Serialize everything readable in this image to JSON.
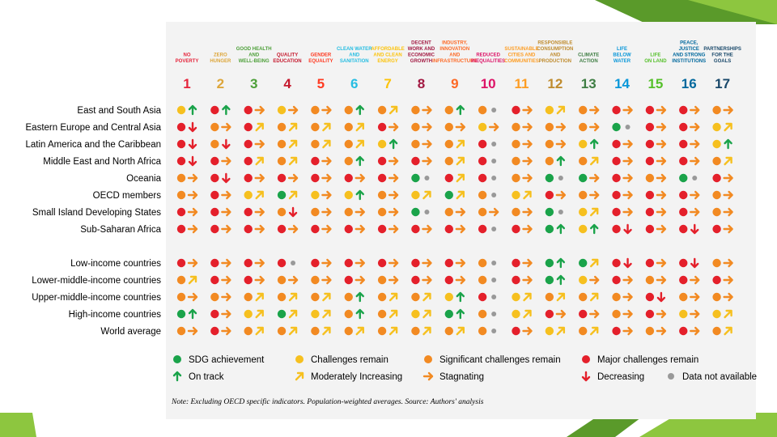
{
  "slide": {
    "accent_color": "#8dc63f",
    "dark_accent": "#5a9a2a"
  },
  "chart_data": {
    "type": "table",
    "goals": [
      {
        "num": "1",
        "title": [
          "NO",
          "POVERTY"
        ],
        "color": "#e5243b"
      },
      {
        "num": "2",
        "title": [
          "ZERO",
          "HUNGER"
        ],
        "color": "#dda63a"
      },
      {
        "num": "3",
        "title": [
          "GOOD HEALTH",
          "AND",
          "WELL-BEING"
        ],
        "color": "#4c9f38"
      },
      {
        "num": "4",
        "title": [
          "QUALITY",
          "EDUCATION"
        ],
        "color": "#c5192d"
      },
      {
        "num": "5",
        "title": [
          "GENDER",
          "EQUALITY"
        ],
        "color": "#ff3a21"
      },
      {
        "num": "6",
        "title": [
          "CLEAN WATER",
          "AND",
          "SANITATION"
        ],
        "color": "#26bde2"
      },
      {
        "num": "7",
        "title": [
          "AFFORDABLE",
          "AND CLEAN",
          "ENERGY"
        ],
        "color": "#fcc30b"
      },
      {
        "num": "8",
        "title": [
          "DECENT",
          "WORK AND",
          "ECONOMIC",
          "GROWTH"
        ],
        "color": "#a21942"
      },
      {
        "num": "9",
        "title": [
          "INDUSTRY,",
          "INNOVATION",
          "AND",
          "INFRASTRUCTURE"
        ],
        "color": "#fd6925"
      },
      {
        "num": "10",
        "title": [
          "REDUCED",
          "INEQUALITIES"
        ],
        "color": "#dd1367"
      },
      {
        "num": "11",
        "title": [
          "SUSTAINABLE",
          "CITIES AND",
          "COMMUNITIES"
        ],
        "color": "#fd9d24"
      },
      {
        "num": "12",
        "title": [
          "RESPONSIBLE",
          "CONSUMPTION",
          "AND",
          "PRODUCTION"
        ],
        "color": "#bf8b2e"
      },
      {
        "num": "13",
        "title": [
          "CLIMATE",
          "ACTION"
        ],
        "color": "#3f7e44"
      },
      {
        "num": "14",
        "title": [
          "LIFE",
          "BELOW",
          "WATER"
        ],
        "color": "#0a97d9"
      },
      {
        "num": "15",
        "title": [
          "LIFE",
          "ON LAND"
        ],
        "color": "#56c02b"
      },
      {
        "num": "16",
        "title": [
          "PEACE,",
          "JUSTICE",
          "AND STRONG",
          "INSTITUTIONS"
        ],
        "color": "#00689d"
      },
      {
        "num": "17",
        "title": [
          "PARTNERSHIPS",
          "FOR THE",
          "GOALS"
        ],
        "color": "#19486a"
      }
    ],
    "rows": [
      {
        "label": "East and South Asia",
        "cells": [
          "Yu",
          "Ru",
          "Ro",
          "Yo",
          "Oo",
          "Ou",
          "On",
          "Oo",
          "Ou",
          "Og",
          "Ro",
          "Yn",
          "Oo",
          "Ro",
          "Ro",
          "Ro",
          "Oo"
        ]
      },
      {
        "label": "Eastern Europe and Central Asia",
        "cells": [
          "Rd",
          "Oo",
          "Rn",
          "On",
          "On",
          "On",
          "Ro",
          "Oo",
          "Oo",
          "Yo",
          "Oo",
          "Oo",
          "Oo",
          "Gg",
          "Ro",
          "Ro",
          "Yn"
        ]
      },
      {
        "label": "Latin America and the Caribbean",
        "cells": [
          "Rd",
          "Od",
          "Ro",
          "On",
          "On",
          "On",
          "Yu",
          "Oo",
          "On",
          "Rg",
          "Oo",
          "Oo",
          "Yu",
          "Ro",
          "Ro",
          "Ro",
          "Yu"
        ]
      },
      {
        "label": "Middle East and North Africa",
        "cells": [
          "Rd",
          "Ro",
          "Rn",
          "On",
          "Ro",
          "Ou",
          "Ro",
          "Ro",
          "On",
          "Rg",
          "Oo",
          "Ou",
          "On",
          "Ro",
          "Ro",
          "Ro",
          "On"
        ]
      },
      {
        "label": "Oceania",
        "cells": [
          "Oo",
          "Rd",
          "Ro",
          "Ro",
          "Ro",
          "Ro",
          "Ro",
          "Gg",
          "Rn",
          "Rg",
          "Oo",
          "Gg",
          "Go",
          "Ro",
          "Oo",
          "Gg",
          "Ro"
        ]
      },
      {
        "label": "OECD members",
        "cells": [
          "Oo",
          "Ro",
          "Yn",
          "Gn",
          "Yo",
          "Yu",
          "Oo",
          "Yn",
          "Gn",
          "Og",
          "Yn",
          "Ro",
          "Oo",
          "Ro",
          "Ro",
          "Ro",
          "Oo"
        ]
      },
      {
        "label": "Small Island Developing States",
        "cells": [
          "Ro",
          "Ro",
          "Ro",
          "Od",
          "Oo",
          "Oo",
          "Oo",
          "Gg",
          "Oo",
          "Oo",
          "Oo",
          "Gg",
          "Yn",
          "Ro",
          "Ro",
          "Ro",
          "Oo"
        ]
      },
      {
        "label": "Sub-Saharan Africa",
        "cells": [
          "Ro",
          "Ro",
          "Ro",
          "Ro",
          "Ro",
          "Ro",
          "Ro",
          "Ro",
          "Ro",
          "Rg",
          "Ro",
          "Gu",
          "Yu",
          "Rd",
          "Ro",
          "Rd",
          "Ro"
        ]
      },
      {
        "label": "Low-income countries",
        "cells": [
          "Ro",
          "Ro",
          "Ro",
          "Rg",
          "Ro",
          "Ro",
          "Ro",
          "Ro",
          "Ro",
          "Og",
          "Ro",
          "Gu",
          "Gn",
          "Rd",
          "Ro",
          "Rd",
          "Oo"
        ]
      },
      {
        "label": "Lower-middle-income countries",
        "cells": [
          "On",
          "Ro",
          "Ro",
          "Oo",
          "Oo",
          "Ro",
          "Oo",
          "Ro",
          "Ro",
          "Og",
          "Ro",
          "Gu",
          "Yo",
          "Ro",
          "Oo",
          "Ro",
          "Ro"
        ]
      },
      {
        "label": "Upper-middle-income countries",
        "cells": [
          "Oo",
          "Oo",
          "On",
          "On",
          "On",
          "Ou",
          "On",
          "On",
          "Yu",
          "Rg",
          "Yn",
          "On",
          "On",
          "Oo",
          "Rd",
          "Oo",
          "Oo"
        ]
      },
      {
        "label": "High-income countries",
        "cells": [
          "Gu",
          "Ro",
          "Yn",
          "Gn",
          "Yn",
          "Ou",
          "On",
          "Yn",
          "Gu",
          "Og",
          "Yn",
          "Ro",
          "Ro",
          "Oo",
          "Ro",
          "Yo",
          "Yn"
        ]
      },
      {
        "label": "World average",
        "cells": [
          "Oo",
          "Ro",
          "On",
          "On",
          "On",
          "On",
          "On",
          "On",
          "On",
          "Og",
          "Ro",
          "Yn",
          "On",
          "Ro",
          "Oo",
          "Ro",
          "On"
        ]
      }
    ],
    "legend": [
      {
        "key": "G",
        "kind": "dot",
        "label": "SDG achievement",
        "color": "#1aa34a"
      },
      {
        "key": "Y",
        "kind": "dot",
        "label": "Challenges remain",
        "color": "#f6c01f"
      },
      {
        "key": "O",
        "kind": "dot",
        "label": "Significant challenges remain",
        "color": "#f28a22"
      },
      {
        "key": "R",
        "kind": "dot",
        "label": "Major challenges remain",
        "color": "#e4202b"
      },
      {
        "key": "u",
        "kind": "trend",
        "label": "On track",
        "color": "#1aa34a"
      },
      {
        "key": "n",
        "kind": "trend",
        "label": "Moderately Increasing",
        "color": "#f6c01f"
      },
      {
        "key": "o",
        "kind": "trend",
        "label": "Stagnating",
        "color": "#f28a22"
      },
      {
        "key": "d",
        "kind": "trend",
        "label": "Decreasing",
        "color": "#e4202b"
      },
      {
        "key": "g",
        "kind": "dot-na",
        "label": "Data not available",
        "color": "#999999"
      }
    ],
    "note": {
      "prefix": "Note:",
      "text": "Excluding OECD specific indicators. Population-weighted averages.",
      "source_prefix": "Source:",
      "source_text": "Authors' analysis"
    }
  }
}
